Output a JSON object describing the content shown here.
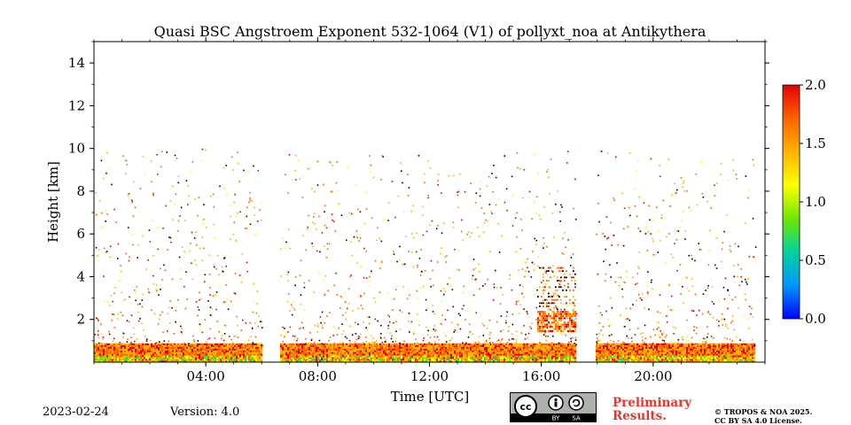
{
  "chart_data": {
    "type": "heatmap",
    "title": "Quasi BSC Angstroem Exponent 532-1064 (V1) of pollyxt_noa at Antikythera",
    "xlabel": "Time [UTC]",
    "ylabel": "Height [km]",
    "xlim_hours": [
      0,
      24
    ],
    "ylim_km": [
      0,
      15
    ],
    "x_ticks": [
      {
        "hour": 4,
        "label": "04:00"
      },
      {
        "hour": 8,
        "label": "08:00"
      },
      {
        "hour": 12,
        "label": "12:00"
      },
      {
        "hour": 16,
        "label": "16:00"
      },
      {
        "hour": 20,
        "label": "20:00"
      }
    ],
    "y_ticks": [
      {
        "value": 2,
        "label": "2"
      },
      {
        "value": 4,
        "label": "4"
      },
      {
        "value": 6,
        "label": "6"
      },
      {
        "value": 8,
        "label": "8"
      },
      {
        "value": 10,
        "label": "10"
      },
      {
        "value": 12,
        "label": "12"
      },
      {
        "value": 14,
        "label": "14"
      }
    ],
    "colorbar": {
      "range": [
        0.0,
        2.0
      ],
      "ticks": [
        {
          "value": 0.0,
          "label": "0.0"
        },
        {
          "value": 0.5,
          "label": "0.5"
        },
        {
          "value": 1.0,
          "label": "1.0"
        },
        {
          "value": 1.5,
          "label": "1.5"
        },
        {
          "value": 2.0,
          "label": "2.0"
        }
      ],
      "colormap": [
        "#0000ff",
        "#0096ff",
        "#00d2a0",
        "#6ee800",
        "#ffff00",
        "#ffb400",
        "#ff6400",
        "#e60000"
      ]
    },
    "layers": [
      {
        "name": "near-surface layer",
        "height_km": [
          0.0,
          0.8
        ],
        "typical_value": 1.6,
        "density": "dense"
      },
      {
        "name": "aerosol layer afternoon",
        "height_km": [
          1.5,
          2.5
        ],
        "time_hours": [
          15.8,
          17.2
        ],
        "typical_value": 1.6,
        "density": "dense"
      },
      {
        "name": "sparse noise",
        "height_km": [
          0.8,
          10.0
        ],
        "typical_value": 1.5,
        "density": "sparse"
      }
    ]
  },
  "footer": {
    "date": "2023-02-24",
    "version": "Version: 4.0",
    "license_badge": {
      "cc": "cc",
      "by": "BY",
      "sa": "SA"
    },
    "preliminary_line1": "Preliminary",
    "preliminary_line2": "Results.",
    "copyright_line1": "© TROPOS & NOA 2025.",
    "copyright_line2": "CC BY SA 4.0 License."
  },
  "colors": {
    "preliminary": "#e8352e",
    "badge_bg": "#aab2ab"
  }
}
